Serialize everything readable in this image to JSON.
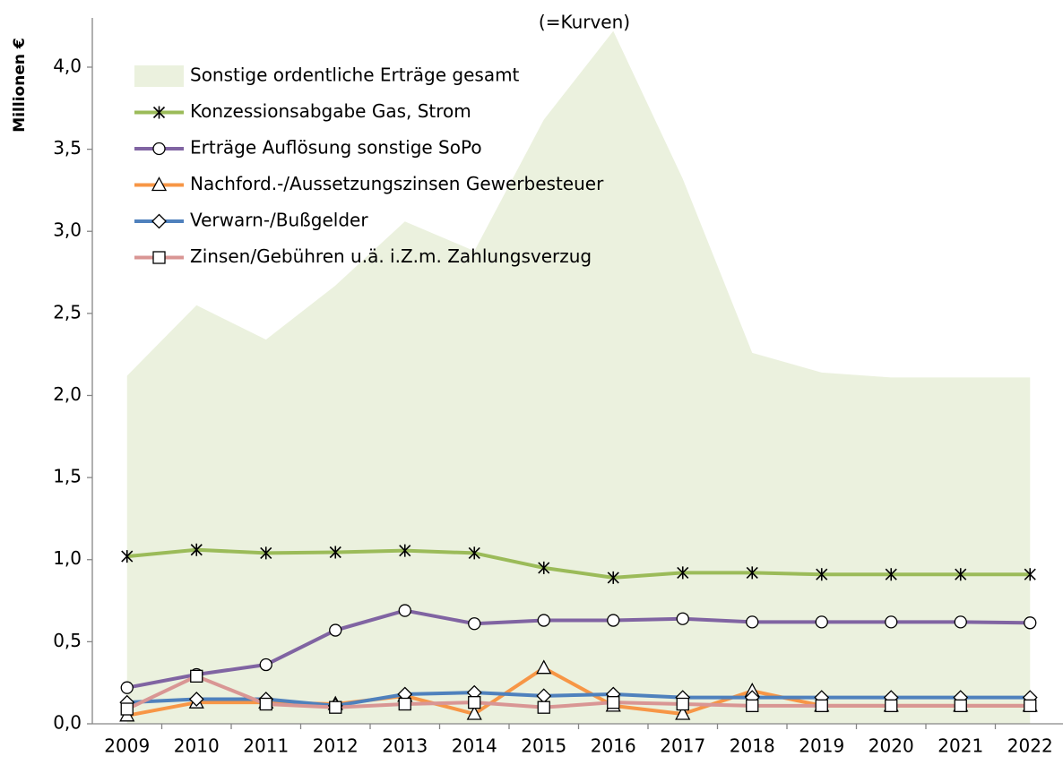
{
  "chart_data": {
    "type": "line",
    "subtitle": "(=Kurven)",
    "y_label": "Millionen €",
    "categories": [
      "2009",
      "2010",
      "2011",
      "2012",
      "2013",
      "2014",
      "2015",
      "2016",
      "2017",
      "2018",
      "2019",
      "2020",
      "2021",
      "2022"
    ],
    "ylim": [
      0,
      4.3
    ],
    "yticks": [
      {
        "value": 0,
        "label": "0,0"
      },
      {
        "value": 0.5,
        "label": "0,5"
      },
      {
        "value": 1,
        "label": "1,0"
      },
      {
        "value": 1.5,
        "label": "1,5"
      },
      {
        "value": 2,
        "label": "2,0"
      },
      {
        "value": 2.5,
        "label": "2,5"
      },
      {
        "value": 3,
        "label": "3,0"
      },
      {
        "value": 3.5,
        "label": "3,5"
      },
      {
        "value": 4,
        "label": "4,0"
      }
    ],
    "grid": false,
    "legend": "top-left",
    "series": [
      {
        "name": "Sonstige ordentliche Erträge gesamt",
        "type": "area",
        "color": "#ebf1de",
        "values": [
          2.12,
          2.55,
          2.34,
          2.67,
          3.06,
          2.88,
          3.68,
          4.22,
          3.32,
          2.26,
          2.14,
          2.11,
          2.11,
          2.11
        ]
      },
      {
        "name": "Konzessionsabgabe Gas, Strom",
        "type": "line",
        "marker": "asterisk",
        "color": "#9bbb59",
        "values": [
          1.02,
          1.06,
          1.04,
          1.045,
          1.055,
          1.04,
          0.95,
          0.89,
          0.92,
          0.92,
          0.91,
          0.91,
          0.91,
          0.91
        ]
      },
      {
        "name": "Erträge Auflösung sonstige SoPo",
        "type": "line",
        "marker": "circle",
        "color": "#8064a2",
        "values": [
          0.22,
          0.3,
          0.36,
          0.57,
          0.69,
          0.61,
          0.63,
          0.63,
          0.64,
          0.62,
          0.62,
          0.62,
          0.62,
          0.615
        ]
      },
      {
        "name": "Nachford.-/Aussetzungszinsen Gewerbesteuer",
        "type": "line",
        "marker": "triangle",
        "color": "#f79646",
        "values": [
          0.05,
          0.13,
          0.13,
          0.12,
          0.17,
          0.06,
          0.34,
          0.11,
          0.06,
          0.2,
          0.11,
          0.11,
          0.11,
          0.11
        ]
      },
      {
        "name": "Verwarn-/Bußgelder",
        "type": "line",
        "marker": "diamond",
        "color": "#4f81bd",
        "values": [
          0.13,
          0.15,
          0.15,
          0.11,
          0.18,
          0.19,
          0.17,
          0.18,
          0.16,
          0.16,
          0.16,
          0.16,
          0.16,
          0.16
        ]
      },
      {
        "name": "Zinsen/Gebühren u.ä. i.Z.m. Zahlungsverzug",
        "type": "line",
        "marker": "square",
        "color": "#d99694",
        "values": [
          0.09,
          0.29,
          0.12,
          0.1,
          0.12,
          0.13,
          0.1,
          0.13,
          0.12,
          0.11,
          0.11,
          0.11,
          0.11,
          0.11
        ]
      }
    ]
  }
}
